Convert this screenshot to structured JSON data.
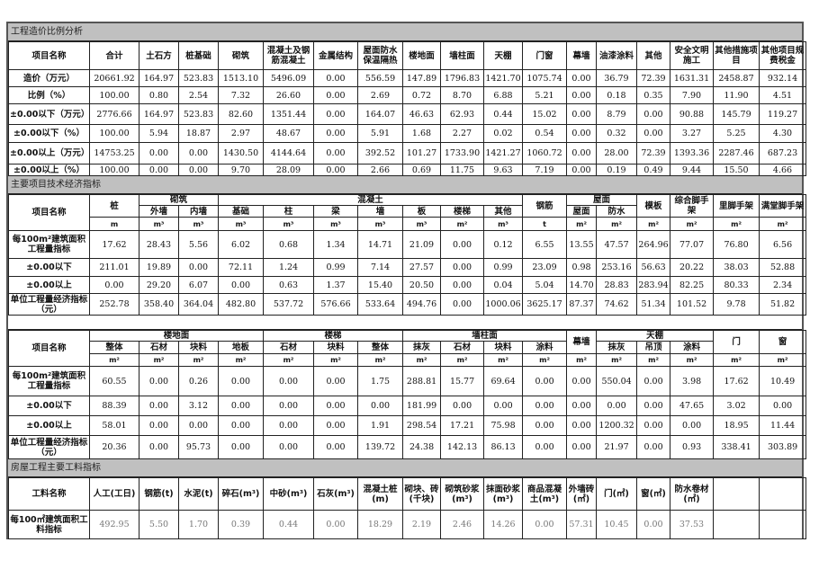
{
  "cost_ratio": {
    "title": "工程造价比例分析",
    "headers": [
      "项目名称",
      "合计",
      "土石方",
      "桩基础",
      "砌筑",
      "混凝土及钢筋混凝土",
      "金属结构",
      "屋面防水保温隔热",
      "楼地面",
      "墙柱面",
      "天棚",
      "门窗",
      "幕墙",
      "油漆涂料",
      "其他",
      "安全文明施工",
      "其他措施项目",
      "其他项目规费税金"
    ],
    "rows": [
      {
        "label": "造价（万元）",
        "values": [
          "20661.92",
          "164.97",
          "523.83",
          "1513.10",
          "5496.09",
          "0.00",
          "556.59",
          "147.89",
          "1796.83",
          "1421.70",
          "1075.74",
          "0.00",
          "36.79",
          "72.39",
          "1631.31",
          "2458.87",
          "932.14"
        ]
      },
      {
        "label": "比例（%）",
        "values": [
          "100.00",
          "0.80",
          "2.54",
          "7.32",
          "26.60",
          "0.00",
          "2.69",
          "0.72",
          "8.70",
          "6.88",
          "5.21",
          "0.00",
          "0.18",
          "0.35",
          "7.90",
          "11.90",
          "4.51"
        ]
      },
      {
        "label": "±0.00以下（万元）",
        "values": [
          "2776.66",
          "164.97",
          "523.83",
          "82.60",
          "1351.44",
          "0.00",
          "164.07",
          "46.63",
          "62.93",
          "0.44",
          "15.02",
          "0.00",
          "8.79",
          "0.00",
          "90.88",
          "145.79",
          "119.27"
        ]
      },
      {
        "label": "±0.00以下（%）",
        "values": [
          "100.00",
          "5.94",
          "18.87",
          "2.97",
          "48.67",
          "0.00",
          "5.91",
          "1.68",
          "2.27",
          "0.02",
          "0.54",
          "0.00",
          "0.32",
          "0.00",
          "3.27",
          "5.25",
          "4.30"
        ]
      },
      {
        "label": "±0.00以上（万元）",
        "values": [
          "14753.25",
          "0.00",
          "0.00",
          "1430.50",
          "4144.64",
          "0.00",
          "392.52",
          "101.27",
          "1733.90",
          "1421.27",
          "1060.72",
          "0.00",
          "28.00",
          "72.39",
          "1393.36",
          "2287.46",
          "687.23"
        ]
      },
      {
        "label": "±0.00以上（%）",
        "values": [
          "100.00",
          "0.00",
          "0.00",
          "9.70",
          "28.09",
          "0.00",
          "2.66",
          "0.69",
          "11.75",
          "9.63",
          "7.19",
          "0.00",
          "0.19",
          "0.49",
          "9.44",
          "15.50",
          "4.66"
        ]
      }
    ]
  },
  "tech_index": {
    "title": "主要项目技术经济指标",
    "name_header": "项目名称",
    "columns": [
      {
        "label": "桩",
        "unit": "m"
      },
      {
        "label": "砌筑",
        "children": [
          {
            "label": "外墙",
            "unit": "m³"
          },
          {
            "label": "内墙",
            "unit": "m³"
          }
        ]
      },
      {
        "label": "混凝土",
        "children": [
          {
            "label": "基础",
            "unit": "m³"
          },
          {
            "label": "柱",
            "unit": "m³"
          },
          {
            "label": "梁",
            "unit": "m³"
          },
          {
            "label": "墙",
            "unit": "m³"
          },
          {
            "label": "板",
            "unit": "m³"
          },
          {
            "label": "楼梯",
            "unit": "m²"
          },
          {
            "label": "其他",
            "unit": "m³"
          }
        ]
      },
      {
        "label": "钢筋",
        "unit": "t"
      },
      {
        "label": "屋面",
        "children": [
          {
            "label": "屋面",
            "unit": "m²"
          },
          {
            "label": "防水",
            "unit": "m²"
          }
        ]
      },
      {
        "label": "模板",
        "unit": "m²"
      },
      {
        "label": "综合脚手架",
        "unit": "m²"
      },
      {
        "label": "里脚手架",
        "unit": "m²"
      },
      {
        "label": "满堂脚手架",
        "unit": "m²"
      }
    ],
    "rows": [
      {
        "label": "每100m²建筑面积工程量指标",
        "values": [
          "17.62",
          "28.43",
          "5.56",
          "6.02",
          "0.68",
          "1.34",
          "14.71",
          "21.09",
          "0.00",
          "0.12",
          "6.55",
          "13.55",
          "47.57",
          "264.96",
          "77.07",
          "76.80",
          "6.56"
        ]
      },
      {
        "label": "±0.00以下",
        "values": [
          "211.01",
          "19.89",
          "0.00",
          "72.11",
          "1.24",
          "0.99",
          "7.14",
          "27.57",
          "0.00",
          "0.99",
          "23.09",
          "0.98",
          "253.16",
          "56.63",
          "20.22",
          "38.03",
          "52.88"
        ]
      },
      {
        "label": "±0.00以上",
        "values": [
          "0.00",
          "29.20",
          "6.07",
          "0.00",
          "0.63",
          "1.37",
          "15.40",
          "20.50",
          "0.00",
          "0.04",
          "5.04",
          "14.70",
          "28.83",
          "283.94",
          "82.25",
          "80.33",
          "2.34"
        ]
      },
      {
        "label": "单位工程量经济指标（元）",
        "values": [
          "252.78",
          "358.40",
          "364.04",
          "482.80",
          "537.72",
          "576.66",
          "533.64",
          "494.76",
          "0.00",
          "1000.06",
          "3625.17",
          "87.37",
          "74.62",
          "51.34",
          "101.52",
          "9.78",
          "51.82"
        ]
      }
    ]
  },
  "finish_index": {
    "name_header": "项目名称",
    "columns": [
      {
        "label": "楼地面",
        "children": [
          {
            "label": "整体",
            "unit": "m²"
          },
          {
            "label": "石材",
            "unit": "m²"
          },
          {
            "label": "块料",
            "unit": "m²"
          },
          {
            "label": "地板",
            "unit": "m²"
          }
        ]
      },
      {
        "label": "楼梯",
        "children": [
          {
            "label": "石材",
            "unit": "m²"
          },
          {
            "label": "块料",
            "unit": "m²"
          },
          {
            "label": "整体",
            "unit": "m²"
          }
        ]
      },
      {
        "label": "墙柱面",
        "children": [
          {
            "label": "抹灰",
            "unit": "m²"
          },
          {
            "label": "石材",
            "unit": "m²"
          },
          {
            "label": "块料",
            "unit": "m²"
          },
          {
            "label": "涂料",
            "unit": "m²"
          }
        ]
      },
      {
        "label": "幕墙",
        "unit": "m²"
      },
      {
        "label": "天棚",
        "children": [
          {
            "label": "抹灰",
            "unit": "m²"
          },
          {
            "label": "吊顶",
            "unit": "m²"
          },
          {
            "label": "涂料",
            "unit": "m²"
          }
        ]
      },
      {
        "label": "门",
        "unit": "m²"
      },
      {
        "label": "窗",
        "unit": "m²"
      }
    ],
    "rows": [
      {
        "label": "每100m²建筑面积工程量指标",
        "values": [
          "60.55",
          "0.00",
          "0.26",
          "0.00",
          "0.00",
          "0.00",
          "1.75",
          "288.81",
          "15.77",
          "69.64",
          "0.00",
          "0.00",
          "550.04",
          "0.00",
          "3.98",
          "17.62",
          "10.49"
        ]
      },
      {
        "label": "±0.00以下",
        "values": [
          "88.39",
          "0.00",
          "3.12",
          "0.00",
          "0.00",
          "0.00",
          "0.00",
          "181.99",
          "0.00",
          "0.00",
          "0.00",
          "0.00",
          "0.00",
          "0.00",
          "47.65",
          "3.02",
          "0.00"
        ]
      },
      {
        "label": "±0.00以上",
        "values": [
          "58.01",
          "0.00",
          "0.00",
          "0.00",
          "0.00",
          "0.00",
          "1.91",
          "298.54",
          "17.21",
          "75.98",
          "0.00",
          "0.00",
          "1200.32",
          "0.00",
          "0.00",
          "18.95",
          "11.44"
        ]
      },
      {
        "label": "单位工程量经济指标（元）",
        "values": [
          "20.36",
          "0.00",
          "95.73",
          "0.00",
          "0.00",
          "0.00",
          "139.72",
          "24.38",
          "142.13",
          "86.13",
          "0.00",
          "0.00",
          "21.97",
          "0.00",
          "0.93",
          "338.41",
          "303.89"
        ]
      }
    ]
  },
  "material_index": {
    "title": "房屋工程主要工料指标",
    "headers": [
      "工料名称",
      "人工(工日)",
      "钢筋(t)",
      "水泥(t)",
      "碎石(m³)",
      "中砂(m³)",
      "石灰(m³)",
      "混凝土桩(m)",
      "砌块、砖(千块)",
      "砌筑砂浆(m³)",
      "抹面砂浆(m³)",
      "商品混凝土(m³)",
      "外墙砖(㎡)",
      "门(㎡)",
      "窗(㎡)",
      "防水卷材(㎡)",
      "",
      ""
    ],
    "rows": [
      {
        "label": "每100㎡建筑面积工料指标",
        "values": [
          "492.95",
          "5.50",
          "1.70",
          "0.39",
          "0.44",
          "0.00",
          "18.29",
          "2.19",
          "2.46",
          "14.26",
          "0.00",
          "57.31",
          "10.45",
          "0.00",
          "37.53",
          "",
          ""
        ]
      }
    ]
  }
}
